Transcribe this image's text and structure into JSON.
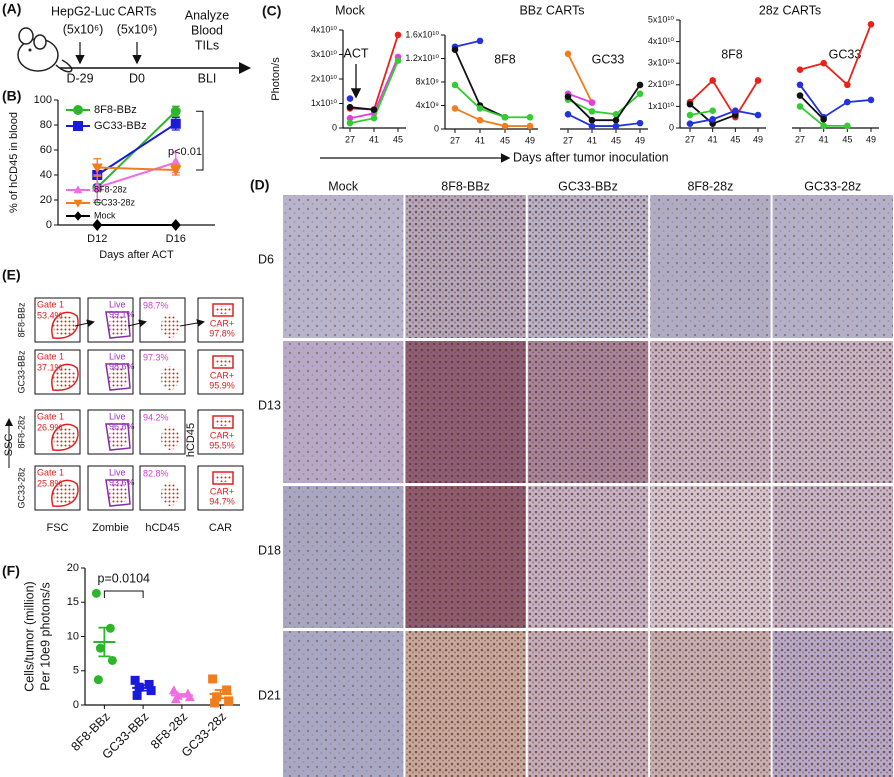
{
  "panel_labels": [
    "(A)",
    "(B)",
    "(C)",
    "(D)",
    "(E)",
    "(F)"
  ],
  "schematic": {
    "cells": "HepG2-Luc",
    "cells_dose": "(5x10⁶)",
    "cells_day": "D-29",
    "carts": "CARTs",
    "carts_dose": "(5x10⁶)",
    "carts_day": "D0",
    "analyze": [
      "Analyze",
      "Blood",
      "TILs"
    ],
    "bli": "BLI"
  },
  "chart_data": [
    {
      "type": "line",
      "y_label": "% of hCD45 in blood",
      "x_label": "Days after ACT",
      "categories": [
        "D12",
        "D16"
      ],
      "ylim": [
        0,
        100
      ],
      "yticks": [
        0,
        20,
        40,
        60,
        80,
        100
      ],
      "annotation": "p<0.01",
      "series": [
        {
          "name": "8F8-BBz",
          "color": "#2db52d",
          "marker": "circle",
          "values": [
            30,
            91
          ],
          "errors": [
            12,
            4
          ]
        },
        {
          "name": "GC33-BBz",
          "color": "#1a1adb",
          "marker": "square",
          "values": [
            40,
            81
          ],
          "errors": [
            8,
            5
          ]
        },
        {
          "name": "8F8-28z",
          "color": "#f06ee0",
          "marker": "triangle",
          "values": [
            30,
            50
          ],
          "errors": [
            10,
            8
          ]
        },
        {
          "name": "GC33-28z",
          "color": "#f07d1e",
          "marker": "triangle-down",
          "values": [
            46,
            44
          ],
          "errors": [
            7,
            4
          ]
        },
        {
          "name": "Mock",
          "color": "#000000",
          "marker": "diamond",
          "values": [
            0,
            0
          ],
          "errors": [
            0,
            0
          ]
        }
      ]
    },
    {
      "type": "line",
      "title": "Mock",
      "y_label": "Photon/s",
      "annotation": "ACT",
      "categories": [
        "27",
        "41",
        "45"
      ],
      "ylim": [
        0,
        40000000000.0
      ],
      "yticks": [
        0,
        {
          "value": 10000000000.0,
          "label": "1x10¹⁰"
        },
        {
          "value": 20000000000.0,
          "label": "2x10¹⁰"
        },
        {
          "value": 30000000000.0,
          "label": "3x10¹⁰"
        },
        {
          "value": 40000000000.0,
          "label": "4x10¹⁰"
        }
      ],
      "groups": [
        {
          "series": [
            {
              "color": "#e8221b",
              "values": [
                8000000000.0,
                7500000000.0,
                38000000000.0
              ]
            },
            {
              "color": "#e040e0",
              "values": [
                4000000000.0,
                6000000000.0,
                29000000000.0
              ]
            },
            {
              "color": "#33cc33",
              "values": [
                2000000000.0,
                4000000000.0,
                27500000000.0
              ]
            },
            {
              "color": "#111111",
              "values": [
                8500000000.0,
                7500000000.0,
                null
              ]
            },
            {
              "color": "#2233dd",
              "values": [
                12000000000.0,
                null,
                null
              ]
            }
          ]
        }
      ]
    },
    {
      "type": "line",
      "title": "BBz CARTs",
      "x_label": "Days after tumor inoculation",
      "categories": [
        "27",
        "41",
        "45",
        "49"
      ],
      "ylim": [
        0,
        16000000000.0
      ],
      "yticks": [
        0,
        {
          "value": 4000000000.0,
          "label": "4x10⁹"
        },
        {
          "value": 8000000000.0,
          "label": "8x10⁹"
        },
        {
          "value": 12000000000.0,
          "label": "1.2x10¹⁰"
        },
        {
          "value": 16000000000.0,
          "label": "1.6x10¹⁰"
        }
      ],
      "groups": [
        {
          "name": "8F8",
          "series": [
            {
              "color": "#2233dd",
              "values": [
                14000000000.0,
                15000000000.0,
                null,
                null
              ]
            },
            {
              "color": "#111111",
              "values": [
                13500000000.0,
                4000000000.0,
                2000000000.0,
                null
              ]
            },
            {
              "color": "#33cc33",
              "values": [
                7500000000.0,
                3500000000.0,
                2000000000.0,
                2000000000.0
              ]
            },
            {
              "color": "#f07d1e",
              "values": [
                3500000000.0,
                1500000000.0,
                500000000.0,
                500000000.0
              ]
            }
          ]
        },
        {
          "name": "GC33",
          "series": [
            {
              "color": "#f07d1e",
              "values": [
                12800000000.0,
                4500000000.0,
                null,
                null
              ]
            },
            {
              "color": "#e040e0",
              "values": [
                6000000000.0,
                4500000000.0,
                null,
                null
              ]
            },
            {
              "color": "#33cc33",
              "values": [
                5000000000.0,
                3000000000.0,
                2500000000.0,
                6000000000.0
              ]
            },
            {
              "color": "#111111",
              "values": [
                5500000000.0,
                1500000000.0,
                1500000000.0,
                7500000000.0
              ]
            },
            {
              "color": "#2233dd",
              "values": [
                2500000000.0,
                500000000.0,
                500000000.0,
                1000000000.0
              ]
            }
          ]
        }
      ]
    },
    {
      "type": "line",
      "title": "28z CARTs",
      "categories": [
        "27",
        "41",
        "45",
        "49"
      ],
      "ylim": [
        0,
        50000000000.0
      ],
      "yticks": [
        0,
        {
          "value": 10000000000.0,
          "label": "1x10¹⁰"
        },
        {
          "value": 20000000000.0,
          "label": "2x10¹⁰"
        },
        {
          "value": 30000000000.0,
          "label": "3x10¹⁰"
        },
        {
          "value": 40000000000.0,
          "label": "4x10¹⁰"
        },
        {
          "value": 50000000000.0,
          "label": "5x10¹⁰"
        }
      ],
      "groups": [
        {
          "name": "8F8",
          "series": [
            {
              "color": "#e8221b",
              "values": [
                12000000000.0,
                22000000000.0,
                5000000000.0,
                22000000000.0
              ]
            },
            {
              "color": "#111111",
              "values": [
                11000000000.0,
                2000000000.0,
                6000000000.0,
                null
              ]
            },
            {
              "color": "#2233dd",
              "values": [
                2000000000.0,
                4000000000.0,
                8000000000.0,
                6000000000.0
              ]
            },
            {
              "color": "#33cc33",
              "values": [
                6000000000.0,
                8000000000.0,
                null,
                null
              ]
            }
          ]
        },
        {
          "name": "GC33",
          "series": [
            {
              "color": "#e8221b",
              "values": [
                27000000000.0,
                30000000000.0,
                20000000000.0,
                48000000000.0
              ]
            },
            {
              "color": "#2233dd",
              "values": [
                20000000000.0,
                5000000000.0,
                12000000000.0,
                13000000000.0
              ]
            },
            {
              "color": "#111111",
              "values": [
                15000000000.0,
                4000000000.0,
                null,
                null
              ]
            },
            {
              "color": "#33cc33",
              "values": [
                10000000000.0,
                1000000000.0,
                1000000000.0,
                null
              ]
            }
          ]
        }
      ]
    },
    {
      "type": "dot",
      "y_label": [
        "Cells/tumor (million)",
        "Per 10e9 photons/s"
      ],
      "annotation": "p=0.0104",
      "categories": [
        "8F8-BBz",
        "GC33-BBz",
        "8F8-28z",
        "GC33-28z"
      ],
      "colors": [
        "#2db52d",
        "#1a1adb",
        "#f06ee0",
        "#f07d1e"
      ],
      "markers": [
        "circle",
        "square",
        "triangle",
        "square"
      ],
      "ylim": [
        0,
        20
      ],
      "yticks": [
        0,
        5,
        10,
        15,
        20
      ],
      "values": [
        [
          16.3,
          11.2,
          8.3,
          6.5,
          3.7
        ],
        [
          3.6,
          3.0,
          2.6,
          2.1,
          1.4
        ],
        [
          2.1,
          1.6,
          1.3,
          1.1,
          0.8
        ],
        [
          3.8,
          2.2,
          1.2,
          0.6,
          0.3
        ]
      ],
      "means": [
        9.2,
        2.5,
        1.4,
        1.6
      ],
      "errors": [
        2.1,
        0.4,
        0.2,
        0.6
      ]
    }
  ],
  "ihc": {
    "columns": [
      "Mock",
      "8F8-BBz",
      "GC33-BBz",
      "8F8-28z",
      "GC33-28z"
    ],
    "rows": [
      "D6",
      "D13",
      "D18",
      "D21"
    ]
  },
  "flow": {
    "rows": [
      {
        "name": "8F8-BBz",
        "gate": "Gate 1",
        "gate_pct": "53.4%",
        "live": "Live",
        "live_pct": "99.1%",
        "hcd45_pct": "98.7%",
        "car": "CAR+",
        "car_pct": "97.8%"
      },
      {
        "name": "GC33-BBz",
        "gate": "Gate 1",
        "gate_pct": "37.1%",
        "live": "Live",
        "live_pct": "98.6%",
        "hcd45_pct": "97.3%",
        "car": "CAR+",
        "car_pct": "95.9%"
      },
      {
        "name": "8F8-28z",
        "gate": "Gate 1",
        "gate_pct": "26.9%",
        "live": "Live",
        "live_pct": "96.8%",
        "hcd45_pct": "94.2%",
        "car": "CAR+",
        "car_pct": "95.5%"
      },
      {
        "name": "GC33-28z",
        "gate": "Gate 1",
        "gate_pct": "25.8%",
        "live": "Live",
        "live_pct": "93.6%",
        "hcd45_pct": "82.8%",
        "car": "CAR+",
        "car_pct": "94.7%"
      }
    ],
    "x_labels": [
      "FSC",
      "Zombie",
      "hCD45",
      "CAR"
    ],
    "y_labels": [
      "SSC",
      "hCD45"
    ]
  }
}
